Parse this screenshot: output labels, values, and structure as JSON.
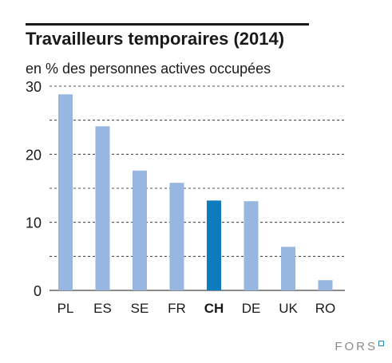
{
  "chart_data": {
    "type": "bar",
    "title": "Travailleurs temporaires (2014)",
    "subtitle": "en % des personnes actives occupées",
    "categories": [
      "PL",
      "ES",
      "SE",
      "FR",
      "CH",
      "DE",
      "UK",
      "RO"
    ],
    "values": [
      28.8,
      24.1,
      17.6,
      15.8,
      13.2,
      13.1,
      6.4,
      1.5
    ],
    "highlight_category": "CH",
    "ylim": [
      0,
      30
    ],
    "yticks": [
      0,
      10,
      20,
      30
    ],
    "grid": "dashed, every 5 units",
    "colors": {
      "bar": "#97b6e0",
      "highlight": "#0f7bbf",
      "grid": "#1a1a1a",
      "text": "#1a1a1a"
    }
  },
  "logo": {
    "text": "FORS"
  }
}
